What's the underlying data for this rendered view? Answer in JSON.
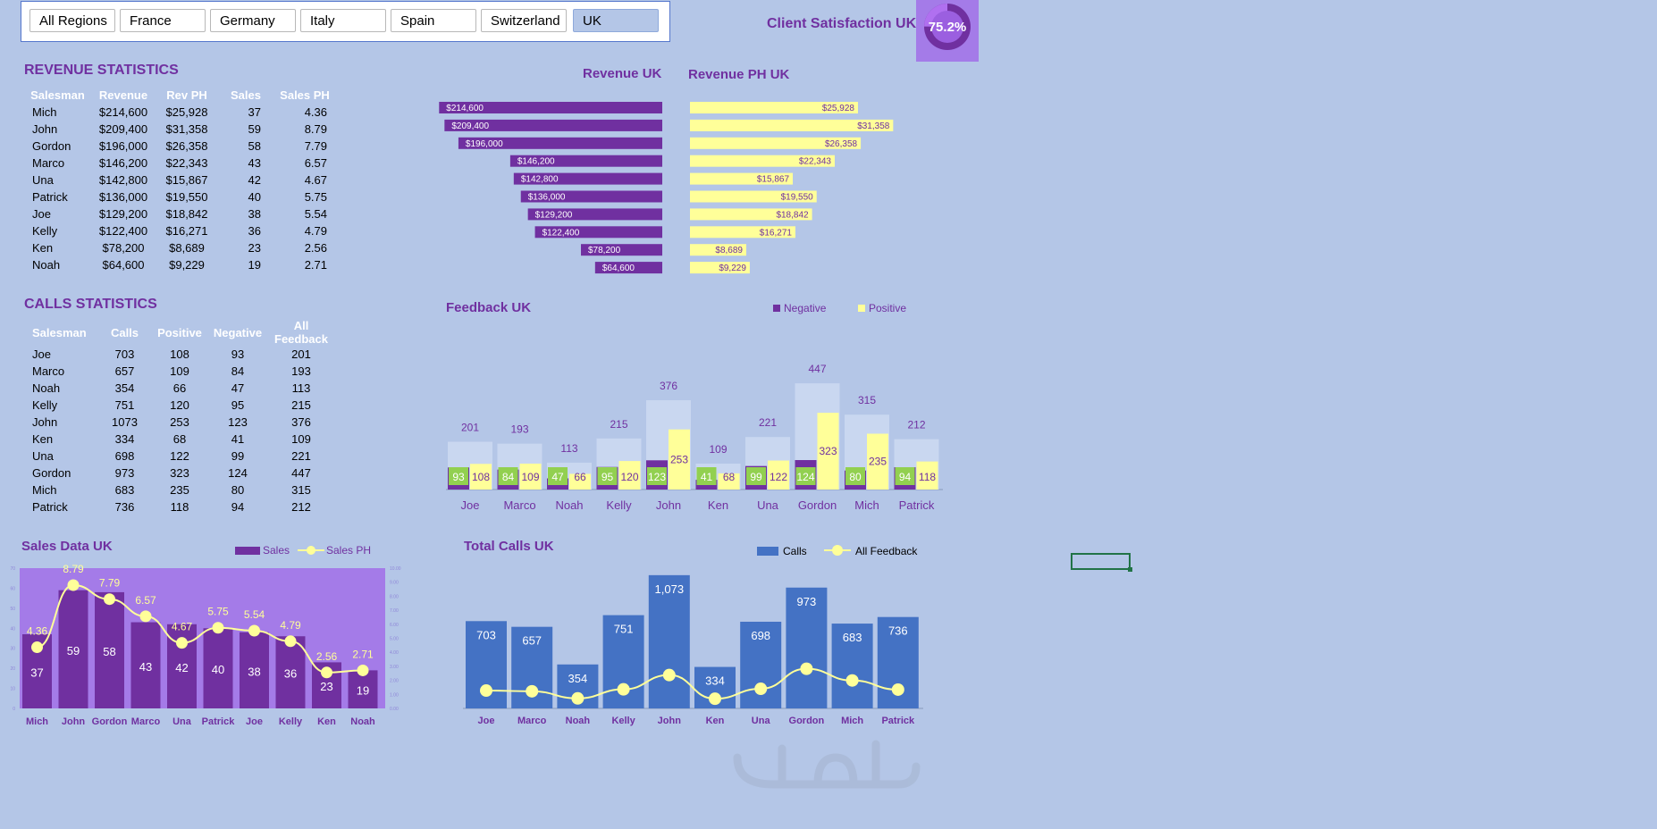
{
  "slicer": {
    "items": [
      {
        "label": "All Regions",
        "selected": false
      },
      {
        "label": "France",
        "selected": false
      },
      {
        "label": "Germany",
        "selected": false
      },
      {
        "label": "Italy",
        "selected": false
      },
      {
        "label": "Spain",
        "selected": false
      },
      {
        "label": "Switzerland",
        "selected": false
      },
      {
        "label": "UK",
        "selected": true
      }
    ]
  },
  "satisfaction": {
    "label": "Client Satisfaction UK:",
    "value_text": "75.2%",
    "value": 0.752
  },
  "revenue_stats": {
    "title": "REVENUE STATISTICS",
    "headers": [
      "Salesman",
      "Revenue",
      "Rev PH",
      "Sales",
      "Sales PH"
    ],
    "rows": [
      [
        "Mich",
        "$214,600",
        "$25,928",
        "37",
        "4.36"
      ],
      [
        "John",
        "$209,400",
        "$31,358",
        "59",
        "8.79"
      ],
      [
        "Gordon",
        "$196,000",
        "$26,358",
        "58",
        "7.79"
      ],
      [
        "Marco",
        "$146,200",
        "$22,343",
        "43",
        "6.57"
      ],
      [
        "Una",
        "$142,800",
        "$15,867",
        "42",
        "4.67"
      ],
      [
        "Patrick",
        "$136,000",
        "$19,550",
        "40",
        "5.75"
      ],
      [
        "Joe",
        "$129,200",
        "$18,842",
        "38",
        "5.54"
      ],
      [
        "Kelly",
        "$122,400",
        "$16,271",
        "36",
        "4.79"
      ],
      [
        "Ken",
        "$78,200",
        "$8,689",
        "23",
        "2.56"
      ],
      [
        "Noah",
        "$64,600",
        "$9,229",
        "19",
        "2.71"
      ]
    ]
  },
  "calls_stats": {
    "title": "CALLS STATISTICS",
    "headers": [
      "Salesman",
      "Calls",
      "Positive",
      "Negative",
      "All Feedback"
    ],
    "rows": [
      [
        "Joe",
        "703",
        "108",
        "93",
        "201"
      ],
      [
        "Marco",
        "657",
        "109",
        "84",
        "193"
      ],
      [
        "Noah",
        "354",
        "66",
        "47",
        "113"
      ],
      [
        "Kelly",
        "751",
        "120",
        "95",
        "215"
      ],
      [
        "John",
        "1073",
        "253",
        "123",
        "376"
      ],
      [
        "Ken",
        "334",
        "68",
        "41",
        "109"
      ],
      [
        "Una",
        "698",
        "122",
        "99",
        "221"
      ],
      [
        "Gordon",
        "973",
        "323",
        "124",
        "447"
      ],
      [
        "Mich",
        "683",
        "235",
        "80",
        "315"
      ],
      [
        "Patrick",
        "736",
        "118",
        "94",
        "212"
      ]
    ]
  },
  "colors": {
    "purple": "#7030a0",
    "yellow": "#ffff99",
    "blue": "#4472c4",
    "green": "#92d050",
    "light_bar": "#c9d7f0",
    "chart_bg": "#a47be8"
  },
  "chart_data": [
    {
      "id": "revenue",
      "type": "bar",
      "title": "Revenue UK",
      "orientation": "horizontal",
      "categories": [
        "Mich",
        "John",
        "Gordon",
        "Marco",
        "Una",
        "Patrick",
        "Joe",
        "Kelly",
        "Ken",
        "Noah"
      ],
      "values": [
        214600,
        209400,
        196000,
        146200,
        142800,
        136000,
        129200,
        122400,
        78200,
        64600
      ],
      "labels": [
        "$214,600",
        "$209,400",
        "$196,000",
        "$146,200",
        "$142,800",
        "$136,000",
        "$129,200",
        "$122,400",
        "$78,200",
        "$64,600"
      ]
    },
    {
      "id": "revenue_ph",
      "type": "bar",
      "title": "Revenue PH UK",
      "orientation": "horizontal",
      "categories": [
        "Mich",
        "John",
        "Gordon",
        "Marco",
        "Una",
        "Patrick",
        "Joe",
        "Kelly",
        "Ken",
        "Noah"
      ],
      "values": [
        25928,
        31358,
        26358,
        22343,
        15867,
        19550,
        18842,
        16271,
        8689,
        9229
      ],
      "labels": [
        "$25,928",
        "$31,358",
        "$26,358",
        "$22,343",
        "$15,867",
        "$19,550",
        "$18,842",
        "$16,271",
        "$8,689",
        "$9,229"
      ]
    },
    {
      "id": "feedback",
      "type": "bar",
      "title": "Feedback UK",
      "categories": [
        "Joe",
        "Marco",
        "Noah",
        "Kelly",
        "John",
        "Ken",
        "Una",
        "Gordon",
        "Mich",
        "Patrick"
      ],
      "series": [
        {
          "name": "Negative",
          "values": [
            93,
            84,
            47,
            95,
            123,
            41,
            99,
            124,
            80,
            94
          ]
        },
        {
          "name": "Positive",
          "values": [
            108,
            109,
            66,
            120,
            253,
            68,
            122,
            323,
            235,
            118
          ]
        }
      ],
      "totals": [
        201,
        193,
        113,
        215,
        376,
        109,
        221,
        447,
        315,
        212
      ],
      "legend": "top-right"
    },
    {
      "id": "sales",
      "type": "bar",
      "title": "Sales Data UK",
      "categories": [
        "Mich",
        "John",
        "Gordon",
        "Marco",
        "Una",
        "Patrick",
        "Joe",
        "Kelly",
        "Ken",
        "Noah"
      ],
      "series": [
        {
          "name": "Sales",
          "type": "bar",
          "values": [
            37,
            59,
            58,
            43,
            42,
            40,
            38,
            36,
            23,
            19
          ]
        },
        {
          "name": "Sales PH",
          "type": "line",
          "values": [
            4.36,
            8.79,
            7.79,
            6.57,
            4.67,
            5.75,
            5.54,
            4.79,
            2.56,
            2.71
          ]
        }
      ],
      "y_left_ticks": [
        "0",
        "10",
        "20",
        "30",
        "40",
        "50",
        "60",
        "70"
      ],
      "y_right_ticks": [
        "0.00",
        "1.00",
        "2.00",
        "3.00",
        "4.00",
        "5.00",
        "6.00",
        "7.00",
        "8.00",
        "9.00",
        "10.00"
      ],
      "legend": "top-right"
    },
    {
      "id": "calls",
      "type": "bar",
      "title": "Total Calls UK",
      "categories": [
        "Joe",
        "Marco",
        "Noah",
        "Kelly",
        "John",
        "Ken",
        "Una",
        "Gordon",
        "Mich",
        "Patrick"
      ],
      "series": [
        {
          "name": "Calls",
          "type": "bar",
          "values": [
            703,
            657,
            354,
            751,
            1073,
            334,
            698,
            973,
            683,
            736
          ],
          "labels": [
            "703",
            "657",
            "354",
            "751",
            "1,073",
            "334",
            "698",
            "973",
            "683",
            "736"
          ]
        },
        {
          "name": "All Feedback",
          "type": "line",
          "values": [
            201,
            193,
            113,
            215,
            376,
            109,
            221,
            447,
            315,
            212
          ]
        }
      ],
      "legend": "top-right"
    }
  ]
}
